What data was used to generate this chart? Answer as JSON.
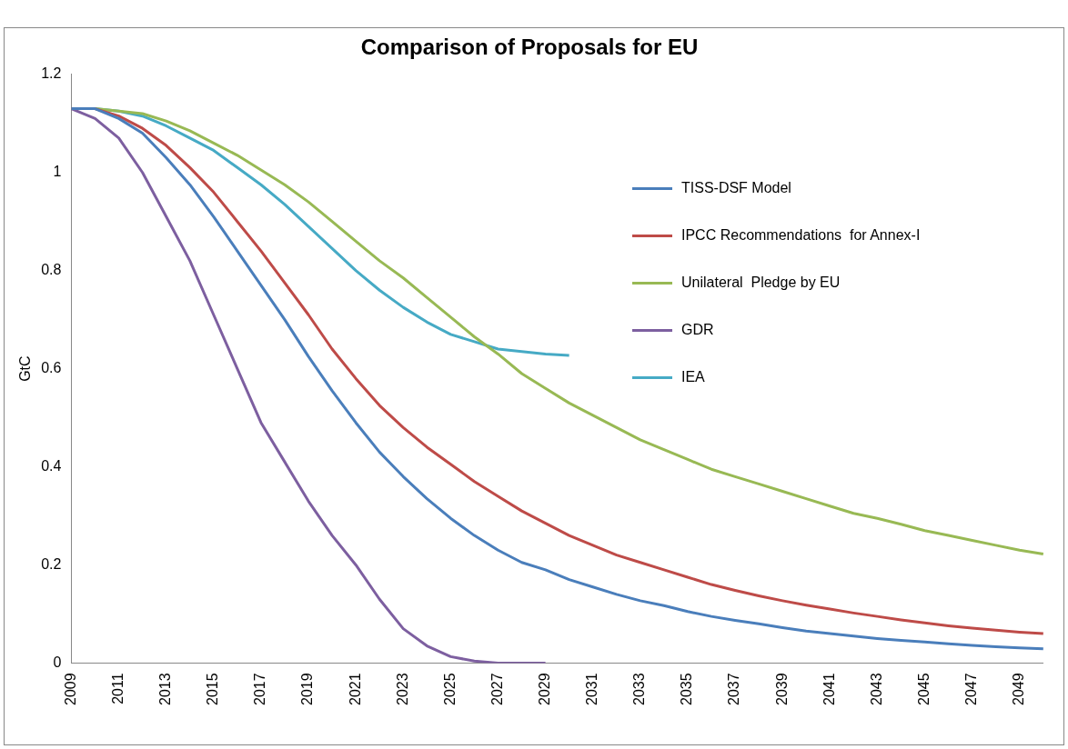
{
  "chart_data": {
    "type": "line",
    "title": "Comparison of Proposals for EU",
    "ylabel": "GtC",
    "categories": [
      "2009",
      null,
      "2011",
      null,
      "2013",
      null,
      "2015",
      null,
      "2017",
      null,
      "2019",
      null,
      "2021",
      null,
      "2023",
      null,
      "2025",
      null,
      "2027",
      null,
      "2029",
      null,
      "2031",
      null,
      "2033",
      null,
      "2035",
      null,
      "2037",
      null,
      "2039",
      null,
      "2041",
      null,
      "2043",
      null,
      "2045",
      null,
      "2047",
      null,
      "2049",
      null
    ],
    "series": [
      {
        "name": "TISS-DSF Model",
        "color": "#4a7ebb",
        "values": [
          1.13,
          1.13,
          1.11,
          1.08,
          1.03,
          0.975,
          0.91,
          0.84,
          0.77,
          0.7,
          0.625,
          0.555,
          0.49,
          0.43,
          0.38,
          0.335,
          0.295,
          0.26,
          0.23,
          0.205,
          0.19,
          0.17,
          0.155,
          0.14,
          0.127,
          0.117,
          0.105,
          0.095,
          0.087,
          0.08,
          0.072,
          0.065,
          0.06,
          0.055,
          0.05,
          0.046,
          0.043,
          0.039,
          0.036,
          0.033,
          0.031,
          0.029
        ]
      },
      {
        "name": "IPCC Recommendations  for Annex-I",
        "color": "#be4b48",
        "values": [
          1.13,
          1.13,
          1.115,
          1.09,
          1.055,
          1.01,
          0.96,
          0.9,
          0.84,
          0.775,
          0.71,
          0.64,
          0.58,
          0.525,
          0.48,
          0.44,
          0.405,
          0.37,
          0.34,
          0.31,
          0.285,
          0.26,
          0.24,
          0.22,
          0.205,
          0.19,
          0.175,
          0.16,
          0.148,
          0.137,
          0.127,
          0.118,
          0.11,
          0.102,
          0.095,
          0.088,
          0.082,
          0.076,
          0.071,
          0.067,
          0.063,
          0.06
        ]
      },
      {
        "name": "Unilateral  Pledge by EU",
        "color": "#98b954",
        "values": [
          1.13,
          1.13,
          1.125,
          1.12,
          1.105,
          1.085,
          1.06,
          1.035,
          1.005,
          0.975,
          0.94,
          0.9,
          0.86,
          0.82,
          0.785,
          0.745,
          0.705,
          0.665,
          0.63,
          0.59,
          0.56,
          0.53,
          0.505,
          0.48,
          0.455,
          0.435,
          0.415,
          0.395,
          0.38,
          0.365,
          0.35,
          0.335,
          0.32,
          0.305,
          0.295,
          0.283,
          0.27,
          0.26,
          0.25,
          0.24,
          0.23,
          0.222
        ]
      },
      {
        "name": "GDR",
        "color": "#7d5fa0",
        "values": [
          1.13,
          1.11,
          1.07,
          1.0,
          0.91,
          0.82,
          0.71,
          0.6,
          0.49,
          0.41,
          0.33,
          0.26,
          0.2,
          0.13,
          0.07,
          0.035,
          0.013,
          0.004,
          0,
          0,
          0,
          null,
          null,
          null,
          null,
          null,
          null,
          null,
          null,
          null,
          null,
          null,
          null,
          null,
          null,
          null,
          null,
          null,
          null,
          null,
          null,
          null
        ]
      },
      {
        "name": "IEA",
        "color": "#46aac5",
        "values": [
          1.13,
          1.13,
          1.125,
          1.115,
          1.095,
          1.07,
          1.045,
          1.01,
          0.975,
          0.935,
          0.89,
          0.845,
          0.8,
          0.76,
          0.725,
          0.695,
          0.67,
          0.655,
          0.64,
          0.635,
          0.63,
          0.627,
          null,
          null,
          null,
          null,
          null,
          null,
          null,
          null,
          null,
          null,
          null,
          null,
          null,
          null,
          null,
          null,
          null,
          null,
          null,
          null
        ]
      }
    ],
    "ylim": [
      0,
      1.2
    ],
    "yticks": [
      0,
      0.2,
      0.4,
      0.6,
      0.8,
      1,
      1.2
    ],
    "grid": false,
    "legend": "top right",
    "marker": "none",
    "line_style": "solid"
  }
}
